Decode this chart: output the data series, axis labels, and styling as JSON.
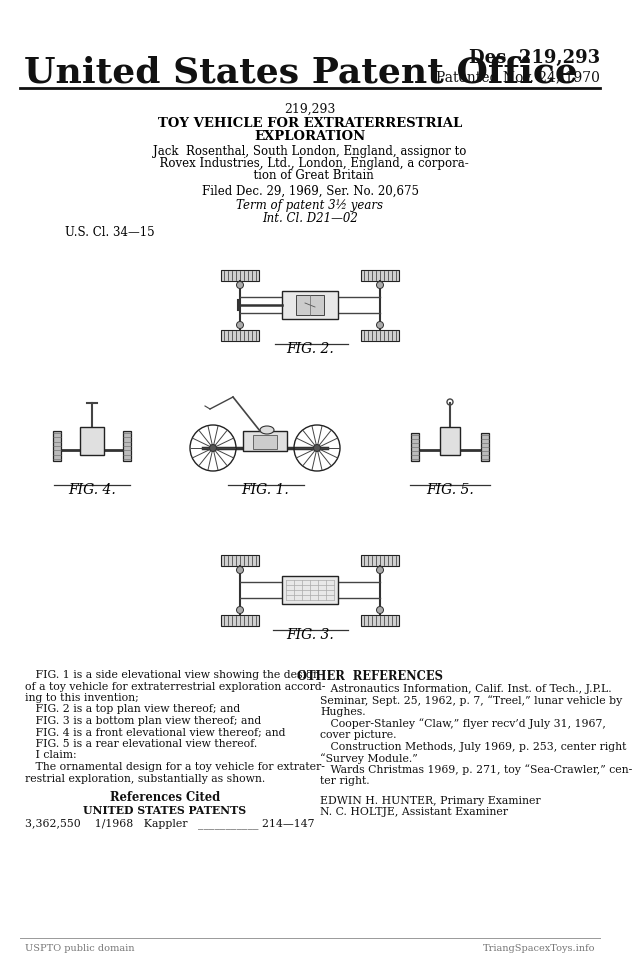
{
  "bg_color": "#ffffff",
  "title_left": "United States Patent Office",
  "title_right_line1": "Des. 219,293",
  "title_right_line2": "Patented Nov. 24, 1970",
  "patent_number": "219,293",
  "patent_title_line1": "TOY VEHICLE FOR EXTRATERRESTRIAL",
  "patent_title_line2": "EXPLORATION",
  "inventor_line1": "Jack  Rosenthal, South London, England, assignor to",
  "inventor_line2": "  Rovex Industries, Ltd., London, England, a corpora-",
  "inventor_line3": "  tion of Great Britain",
  "filed_line": "Filed Dec. 29, 1969, Ser. No. 20,675",
  "term_line": "Term of patent 3½ years",
  "int_cl_line": "Int. Cl. D21—02",
  "us_cl_line": "U.S. Cl. 34—15",
  "fig2_label": "FIG. 2.",
  "fig1_label": "FIG. 1.",
  "fig4_label": "FIG. 4.",
  "fig5_label": "FIG. 5.",
  "fig3_label": "FIG. 3.",
  "desc_line1": "   FIG. 1 is a side elevational view showing the design",
  "desc_line2": "of a toy vehicle for extraterrestrial exploration accord-",
  "desc_line3": "ing to this invention;",
  "desc_line4": "   FIG. 2 is a top plan view thereof; and",
  "desc_line5": "   FIG. 3 is a bottom plan view thereof; and",
  "desc_line6": "   FIG. 4 is a front elevational view thereof; and",
  "desc_line7": "   FIG. 5 is a rear elevational view thereof.",
  "desc_line8": "   I claim:",
  "desc_line9": "   The ornamental design for a toy vehicle for extrater-",
  "desc_line10": "restrial exploration, substantially as shown.",
  "ref_cited_title": "References Cited",
  "us_patents_title": "UNITED STATES PATENTS",
  "us_patent_entry": "3,362,550    1/1968   Kappler   ___________ 214—147",
  "other_refs_title": "OTHER  REFERENCES",
  "other_line1": "   Astronautics Information, Calif. Inst. of Tech., J.P.L.",
  "other_line2": "Seminar, Sept. 25, 1962, p. 7, “Treel,” lunar vehicle by",
  "other_line3": "Hughes.",
  "other_line4": "   Cooper-Stanley “Claw,” flyer recv’d July 31, 1967,",
  "other_line5": "cover picture.",
  "other_line6": "   Construction Methods, July 1969, p. 253, center right",
  "other_line7": "“Survey Module.”",
  "other_line8": "   Wards Christmas 1969, p. 271, toy “Sea-Crawler,” cen-",
  "other_line9": "ter right.",
  "primary_examiner": "EDWIN H. HUNTER, Primary Examiner",
  "assistant_examiner": "N. C. HOLTJE, Assistant Examiner",
  "footer_left": "USPTO public domain",
  "footer_right": "TriangSpacexToys.info"
}
